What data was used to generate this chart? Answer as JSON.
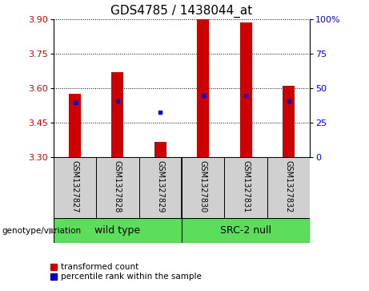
{
  "title": "GDS4785 / 1438044_at",
  "samples": [
    "GSM1327827",
    "GSM1327828",
    "GSM1327829",
    "GSM1327830",
    "GSM1327831",
    "GSM1327832"
  ],
  "bar_tops": [
    3.575,
    3.67,
    3.365,
    3.9,
    3.885,
    3.61
  ],
  "bar_bottoms": [
    3.3,
    3.3,
    3.3,
    3.3,
    3.3,
    3.3
  ],
  "percentile_values": [
    3.535,
    3.545,
    3.495,
    3.568,
    3.568,
    3.542
  ],
  "ylim_left": [
    3.3,
    3.9
  ],
  "yticks_left": [
    3.3,
    3.45,
    3.6,
    3.75,
    3.9
  ],
  "yticks_right": [
    0,
    25,
    50,
    75,
    100
  ],
  "bar_color": "#cc0000",
  "percentile_color": "#0000cc",
  "grid_color": "#000000",
  "group1_label": "wild type",
  "group2_label": "SRC-2 null",
  "group_color": "#5cdd5c",
  "genotype_label": "genotype/variation",
  "legend_red_label": "transformed count",
  "legend_blue_label": "percentile rank within the sample",
  "title_fontsize": 11,
  "tick_fontsize": 8,
  "sample_fontsize": 7,
  "group_fontsize": 9
}
